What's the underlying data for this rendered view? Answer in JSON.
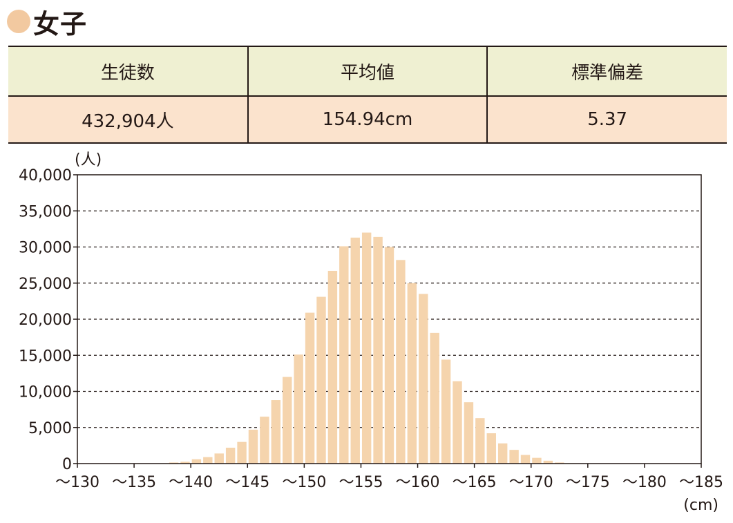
{
  "heading": {
    "title": "女子",
    "dot_color": "#f2c9a0"
  },
  "stats_table": {
    "headers": [
      "生徒数",
      "平均値",
      "標準偏差"
    ],
    "values": [
      "432,904人",
      "154.94cm",
      "5.37"
    ],
    "header_bg": "#eff0d2",
    "value_bg": "#fbe3cd"
  },
  "chart_data": {
    "type": "bar",
    "title": "",
    "xlabel": "(cm)",
    "ylabel": "(人)",
    "ylim": [
      0,
      40000
    ],
    "xlim": [
      130,
      185
    ],
    "bin_width": 1,
    "yticks": [
      0,
      5000,
      10000,
      15000,
      20000,
      25000,
      30000,
      35000,
      40000
    ],
    "ytick_labels": [
      "0",
      "5,000",
      "10,000",
      "15,000",
      "20,000",
      "25,000",
      "30,000",
      "35,000",
      "40,000"
    ],
    "xticks": [
      130,
      135,
      140,
      145,
      150,
      155,
      160,
      165,
      170,
      175,
      180,
      185
    ],
    "xtick_labels": [
      "〜130",
      "〜135",
      "〜140",
      "〜145",
      "〜150",
      "〜155",
      "〜160",
      "〜165",
      "〜170",
      "〜175",
      "〜180",
      "〜185"
    ],
    "grid": "horizontal dashed",
    "bar_color": "#f5d4ad",
    "bins": [
      {
        "x": 138,
        "y": 150
      },
      {
        "x": 139,
        "y": 250
      },
      {
        "x": 140,
        "y": 600
      },
      {
        "x": 141,
        "y": 900
      },
      {
        "x": 142,
        "y": 1400
      },
      {
        "x": 143,
        "y": 2200
      },
      {
        "x": 144,
        "y": 3000
      },
      {
        "x": 145,
        "y": 4700
      },
      {
        "x": 146,
        "y": 6500
      },
      {
        "x": 147,
        "y": 8800
      },
      {
        "x": 148,
        "y": 12000
      },
      {
        "x": 149,
        "y": 15100
      },
      {
        "x": 150,
        "y": 20900
      },
      {
        "x": 151,
        "y": 23100
      },
      {
        "x": 152,
        "y": 26700
      },
      {
        "x": 153,
        "y": 30100
      },
      {
        "x": 154,
        "y": 31300
      },
      {
        "x": 155,
        "y": 32000
      },
      {
        "x": 156,
        "y": 31400
      },
      {
        "x": 157,
        "y": 30000
      },
      {
        "x": 158,
        "y": 28200
      },
      {
        "x": 159,
        "y": 25000
      },
      {
        "x": 160,
        "y": 23500
      },
      {
        "x": 161,
        "y": 18100
      },
      {
        "x": 162,
        "y": 14400
      },
      {
        "x": 163,
        "y": 11400
      },
      {
        "x": 164,
        "y": 8500
      },
      {
        "x": 165,
        "y": 6300
      },
      {
        "x": 166,
        "y": 4200
      },
      {
        "x": 167,
        "y": 2800
      },
      {
        "x": 168,
        "y": 1900
      },
      {
        "x": 169,
        "y": 1200
      },
      {
        "x": 170,
        "y": 800
      },
      {
        "x": 171,
        "y": 400
      },
      {
        "x": 172,
        "y": 150
      },
      {
        "x": 173,
        "y": 50
      }
    ]
  }
}
